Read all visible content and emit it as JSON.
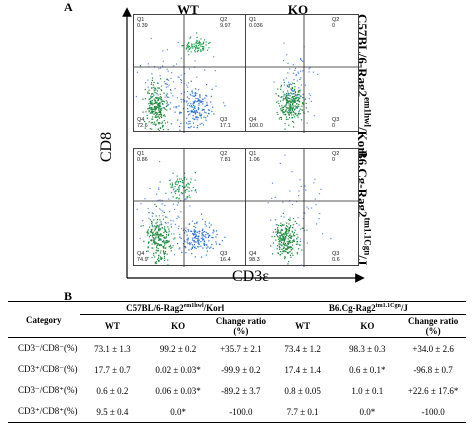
{
  "panel_a": {
    "letter": "A",
    "columns": [
      "WT",
      "KO"
    ],
    "y_axis": "CD8",
    "x_axis": "CD3ε",
    "rows": [
      {
        "label_main": "C57BL/6-Rag2",
        "label_sup": "em1hwl",
        "label_tail": "/Korl"
      },
      {
        "label_main": "B6.Cg-Rag2",
        "label_sup": "tm1.1Cgn",
        "label_tail": "/J"
      }
    ],
    "plots": [
      {
        "q1": "Q1",
        "q1v": "0.39",
        "q2": "Q2",
        "q2v": "9.97",
        "q4": "Q4",
        "q4v": "72.6",
        "q3": "Q3",
        "q3v": "17.1"
      },
      {
        "q1": "Q1",
        "q1v": "0.036",
        "q2": "Q2",
        "q2v": "0",
        "q4": "Q4",
        "q4v": "100.0",
        "q3": "Q3",
        "q3v": "0"
      },
      {
        "q1": "Q1",
        "q1v": "0.86",
        "q2": "Q2",
        "q2v": "7.81",
        "q4": "Q4",
        "q4v": "74.9",
        "q3": "Q3",
        "q3v": "16.4"
      },
      {
        "q1": "Q1",
        "q1v": "1.06",
        "q2": "Q2",
        "q2v": "0",
        "q4": "Q4",
        "q4v": "98.3",
        "q3": "Q3",
        "q3v": "0.6"
      }
    ]
  },
  "panel_b": {
    "letter": "B",
    "category_header": "Category",
    "group1_main": "C57BL/6-Rag2",
    "group1_sup": "em1hwl",
    "group1_tail": "/Korl",
    "group2_main": "B6.Cg-Rag2",
    "group2_sup": "tm1.1Cgn",
    "group2_tail": "/J",
    "sub_headers": [
      "WT",
      "KO",
      "Change ratio (%)",
      "WT",
      "KO",
      "Change ratio (%)"
    ],
    "rows": [
      {
        "cat": "CD3⁻/CD8⁻(%)",
        "c": [
          "73.1 ± 1.3",
          "99.2 ± 0.2",
          "+35.7 ± 2.1",
          "73.4 ± 1.2",
          "98.3 ± 0.3",
          "+34.0 ± 2.6"
        ]
      },
      {
        "cat": "CD3⁺/CD8⁻(%)",
        "c": [
          "17.7 ± 0.7",
          "0.02 ± 0.03*",
          "-99.9 ± 0.2",
          "17.4 ± 1.4",
          "0.6 ± 0.1*",
          "-96.8 ± 0.7"
        ]
      },
      {
        "cat": "CD3⁻/CD8⁺(%)",
        "c": [
          "0.6 ± 0.2",
          "0.06 ± 0.03*",
          "-89.2 ± 3.7",
          "0.8 ± 0.05",
          "1.0 ± 0.1",
          "+22.6 ± 17.6*"
        ]
      },
      {
        "cat": "CD3⁺/CD8⁺(%)",
        "c": [
          "9.5 ± 0.4",
          "0.0*",
          "-100.0",
          "7.7 ± 0.1",
          "0.0*",
          "-100.0"
        ]
      }
    ]
  }
}
